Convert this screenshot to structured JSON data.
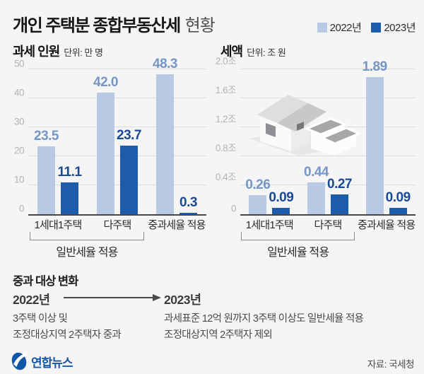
{
  "header": {
    "title_main": "개인 주택분 종합부동산세",
    "title_suffix": "현황",
    "legend": [
      {
        "label": "2022년",
        "color": "#b9c8e3"
      },
      {
        "label": "2023년",
        "color": "#1d5bad"
      }
    ]
  },
  "colors": {
    "background": "#f5f5f6",
    "bar_2022": "#b9c8e3",
    "bar_2023": "#1d5bad",
    "value_label_2022": "#7495c6",
    "value_label_2023": "#1b4a94",
    "gridline": "#dcdcdd",
    "axis_tick": "#b2b3b5",
    "baseline": "#464646",
    "logo_blue": "#1457a6"
  },
  "icons": {
    "house_illustration": "isometric-gray-houses",
    "logo_mark": "yonhap-swirl-ellipse",
    "arrow": "right-arrow"
  },
  "chart_data": [
    {
      "type": "bar",
      "title": "과세 인원",
      "unit": "단위: 만 명",
      "categories": [
        "1세대1주택",
        "다주택",
        "중과세율 적용"
      ],
      "series": [
        {
          "name": "2022년",
          "color": "#b9c8e3",
          "label_color": "#7495c6",
          "values": [
            23.5,
            42.0,
            48.3
          ],
          "labels": [
            "23.5",
            "42.0",
            "48.3"
          ]
        },
        {
          "name": "2023년",
          "color": "#1d5bad",
          "label_color": "#1b4a94",
          "values": [
            11.1,
            23.7,
            0.3
          ],
          "labels": [
            "11.1",
            "23.7",
            "0.3"
          ]
        }
      ],
      "ylim": [
        0,
        50
      ],
      "yticks": [
        0,
        10,
        20,
        30,
        40,
        50
      ],
      "ytick_labels": [
        "0",
        "10",
        "20",
        "30",
        "40",
        "50"
      ],
      "bracket_label": "일반세율 적용",
      "bracket_groups": [
        0,
        1
      ],
      "grid": true,
      "legend_position": "top-right"
    },
    {
      "type": "bar",
      "title": "세액",
      "unit": "단위: 조 원",
      "categories": [
        "1세대1주택",
        "다주택",
        "중과세율 적용"
      ],
      "series": [
        {
          "name": "2022년",
          "color": "#b9c8e3",
          "label_color": "#7495c6",
          "values": [
            0.26,
            0.44,
            1.89
          ],
          "labels": [
            "0.26",
            "0.44",
            "1.89"
          ]
        },
        {
          "name": "2023년",
          "color": "#1d5bad",
          "label_color": "#1b4a94",
          "values": [
            0.09,
            0.27,
            0.09
          ],
          "labels": [
            "0.09",
            "0.27",
            "0.09"
          ]
        }
      ],
      "ylim": [
        0,
        2.0
      ],
      "yticks": [
        0,
        0.4,
        0.8,
        1.2,
        1.6,
        2.0
      ],
      "ytick_labels": [
        "0",
        "0.4조",
        "0.8조",
        "1.2조",
        "1.6조",
        "2.0조"
      ],
      "bracket_label": "일반세율 적용",
      "bracket_groups": [
        0,
        1
      ],
      "grid": true,
      "legend_position": "top-right"
    }
  ],
  "bottom": {
    "heading": "중과 대상 변화",
    "before": {
      "year": "2022년",
      "lines": [
        "3주택 이상 및",
        "조정대상지역 2주택자 중과"
      ]
    },
    "after": {
      "year": "2023년",
      "lines": [
        "과세표준 12억 원까지 3주택 이상도 일반세율 적용",
        "조정대상지역 2주택자 제외"
      ]
    }
  },
  "footer": {
    "logo_text": "연합뉴스",
    "source": "자료: 국세청"
  }
}
